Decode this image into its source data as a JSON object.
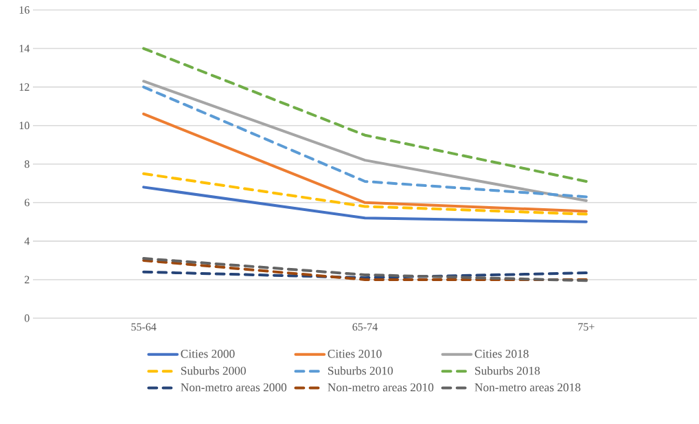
{
  "chart_data": {
    "type": "line",
    "categories": [
      "55-64",
      "65-74",
      "75+"
    ],
    "ylim": [
      0,
      16
    ],
    "yticks": [
      0,
      2,
      4,
      6,
      8,
      10,
      12,
      14,
      16
    ],
    "grid": "y",
    "legend": "bottom",
    "marker": "none",
    "series": [
      {
        "name": "Cities 2000",
        "color": "#4472c4",
        "line_style": "solid",
        "values": [
          6.8,
          5.2,
          5.0
        ]
      },
      {
        "name": "Cities 2010",
        "color": "#ed7d31",
        "line_style": "solid",
        "values": [
          10.6,
          6.0,
          5.55
        ]
      },
      {
        "name": "Cities 2018",
        "color": "#a5a5a5",
        "line_style": "solid",
        "values": [
          12.3,
          8.2,
          6.1
        ]
      },
      {
        "name": "Suburbs 2000",
        "color": "#ffc000",
        "line_style": "dashed",
        "values": [
          7.5,
          5.8,
          5.4
        ]
      },
      {
        "name": "Suburbs 2010",
        "color": "#5b9bd5",
        "line_style": "dashed",
        "values": [
          12.0,
          7.1,
          6.3
        ]
      },
      {
        "name": "Suburbs 2018",
        "color": "#70ad47",
        "line_style": "dashed",
        "values": [
          14.0,
          9.5,
          7.1
        ]
      },
      {
        "name": "Non-metro areas 2000",
        "color": "#264478",
        "line_style": "dashed",
        "values": [
          2.4,
          2.1,
          2.35
        ]
      },
      {
        "name": "Non-metro areas 2010",
        "color": "#9e480e",
        "line_style": "dashed",
        "values": [
          3.0,
          2.0,
          2.0
        ]
      },
      {
        "name": "Non-metro areas 2018",
        "color": "#636363",
        "line_style": "dashed",
        "values": [
          3.1,
          2.25,
          1.95
        ]
      }
    ]
  }
}
